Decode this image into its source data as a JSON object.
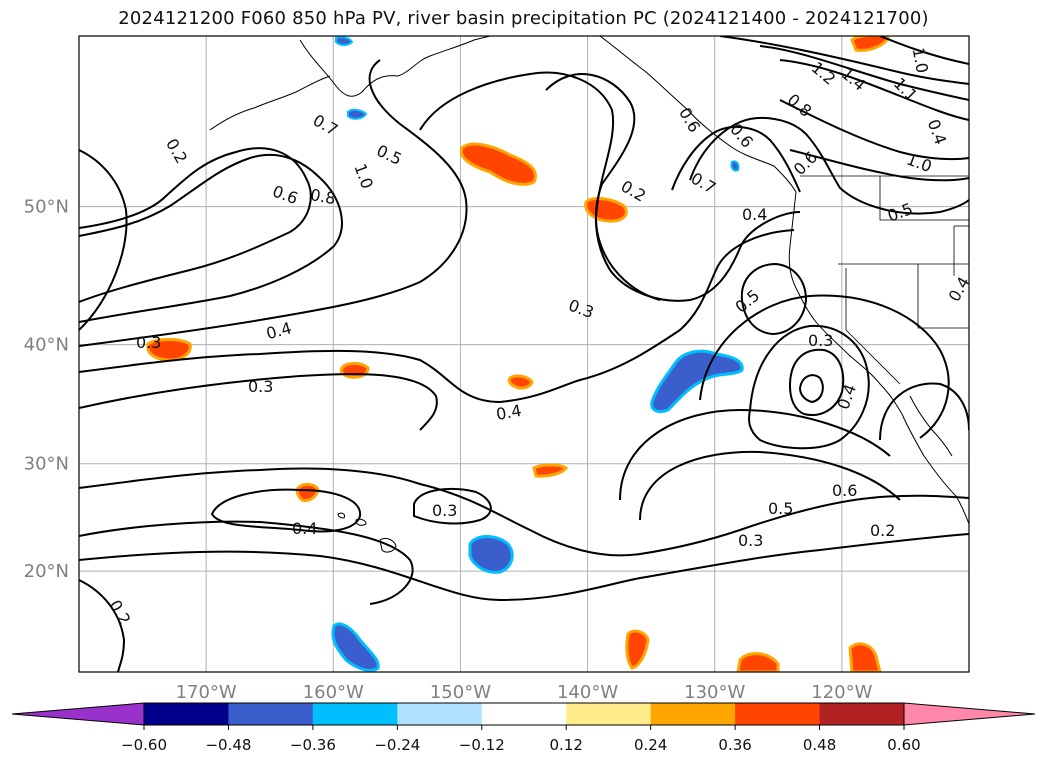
{
  "title": "2024121200 F060 850 hPa PV, river basin precipitation PC (2024121400 - 2024121700)",
  "map": {
    "lat_labels": [
      {
        "lat": 50,
        "text": "50°N"
      },
      {
        "lat": 40,
        "text": "40°N"
      },
      {
        "lat": 30,
        "text": "30°N"
      },
      {
        "lat": 20,
        "text": "20°N"
      }
    ],
    "lon_labels": [
      {
        "lon": -170,
        "text": "170°W"
      },
      {
        "lon": -160,
        "text": "160°W"
      },
      {
        "lon": -150,
        "text": "150°W"
      },
      {
        "lon": -140,
        "text": "140°W"
      },
      {
        "lon": -130,
        "text": "130°W"
      },
      {
        "lon": -120,
        "text": "120°W"
      }
    ],
    "extent": {
      "lon_min": -180,
      "lon_max": -110,
      "lat_min": 10,
      "lat_max": 60
    },
    "gridlines": true,
    "grid_color": "#b0b0b0",
    "label_color": "#808080",
    "contour_labels": [
      "0.2",
      "0.2",
      "0.3",
      "0.3",
      "0.3",
      "0.3",
      "0.3",
      "0.3",
      "0.4",
      "0.4",
      "0.4",
      "0.4",
      "0.5",
      "0.5",
      "0.5",
      "0.6",
      "0.6",
      "0.6",
      "0.7",
      "0.7",
      "0.8",
      "0.8",
      "1.0",
      "1.0",
      "1.2",
      "1.4",
      "1.1",
      "0.6",
      "0.5",
      "0.4",
      "0.2",
      "0.2",
      "0.6",
      "0.4",
      "0.4",
      "1.0"
    ]
  },
  "colorbar": {
    "ticks": [
      "−0.60",
      "−0.48",
      "−0.36",
      "−0.24",
      "−0.12",
      "0.12",
      "0.24",
      "0.36",
      "0.48",
      "0.60"
    ],
    "under_color": "#9932cc",
    "over_color": "#ff88aa",
    "colors": [
      "#00008b",
      "#3a5fcd",
      "#00bfff",
      "#b0e2ff",
      "#ffffff",
      "#ffec8b",
      "#ffa500",
      "#ff4500",
      "#b22222"
    ]
  }
}
